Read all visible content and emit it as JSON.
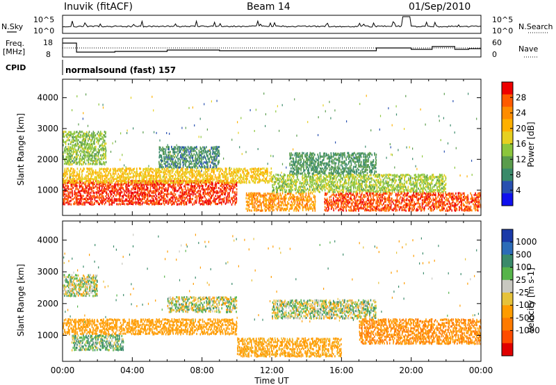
{
  "header": {
    "station": "Inuvik (fitACF)",
    "beam": "Beam 14",
    "date": "01/Sep/2010"
  },
  "summary": {
    "nsky_label": "N.Sky",
    "nsearch_label": "N.Search",
    "freq_label_line1": "Freq.",
    "freq_label_line2": "[MHz]",
    "nave_label": "Nave",
    "cpid_label": "CPID",
    "cpid_text": "normalsound (fast) 157",
    "left_ticks_noise": [
      "10^5",
      "10^0"
    ],
    "right_ticks_noise": [
      "10^5",
      "10^0"
    ],
    "left_ticks_freq": [
      "18",
      "8"
    ],
    "right_ticks_nave": [
      "60",
      "0"
    ]
  },
  "axes": {
    "ylabel": "Slant Range [km]",
    "xlabel": "Time UT",
    "yticks": [
      "1000",
      "2000",
      "3000",
      "4000"
    ],
    "xticks": [
      "00:00",
      "04:00",
      "08:00",
      "12:00",
      "16:00",
      "20:00",
      "00:00"
    ]
  },
  "colorbars": {
    "power": {
      "label": "Power [dB]",
      "ticks": [
        "4",
        "8",
        "12",
        "16",
        "20",
        "24",
        "28"
      ],
      "colors": [
        "#1010ee",
        "#2850b0",
        "#3a8a6a",
        "#5a9c4c",
        "#8cc63c",
        "#e6d020",
        "#ffb000",
        "#ff8c00",
        "#ff5a00",
        "#ee0000"
      ]
    },
    "velocity": {
      "label": "Velocity [m s-1]",
      "ticks": [
        "1000",
        "500",
        "100",
        "25",
        "-25",
        "-100",
        "-500",
        "-1000"
      ],
      "colors": [
        "#1a3aa8",
        "#2c6cb8",
        "#3a8a6a",
        "#56b44a",
        "#c8c8c0",
        "#e6c23a",
        "#ff9c00",
        "#ff7a00",
        "#ff4c00",
        "#e00000"
      ]
    }
  },
  "chart_data": [
    {
      "type": "heatmap",
      "title": "Power",
      "xlabel": "Time UT",
      "ylabel": "Slant Range [km]",
      "xlim": [
        "00:00",
        "24:00"
      ],
      "ylim": [
        180,
        4600
      ],
      "colorbar_range": [
        0,
        30
      ],
      "bands": [
        {
          "t_start": 0.0,
          "t_end": 10.0,
          "range_lo": 500,
          "range_hi": 1300,
          "value": 27
        },
        {
          "t_start": 0.0,
          "t_end": 12.0,
          "range_lo": 1200,
          "range_hi": 1700,
          "value": 18
        },
        {
          "t_start": 0.0,
          "t_end": 2.5,
          "range_lo": 1800,
          "range_hi": 2900,
          "value": 13
        },
        {
          "t_start": 5.5,
          "t_end": 9.0,
          "range_lo": 1700,
          "range_hi": 2400,
          "value": 8
        },
        {
          "t_start": 10.5,
          "t_end": 14.5,
          "range_lo": 300,
          "range_hi": 900,
          "value": 22
        },
        {
          "t_start": 12.0,
          "t_end": 22.0,
          "range_lo": 900,
          "range_hi": 1500,
          "value": 14
        },
        {
          "t_start": 15.0,
          "t_end": 24.0,
          "range_lo": 300,
          "range_hi": 900,
          "value": 26
        },
        {
          "t_start": 13.0,
          "t_end": 18.0,
          "range_lo": 1500,
          "range_hi": 2200,
          "value": 9
        }
      ]
    },
    {
      "type": "heatmap",
      "title": "Velocity",
      "xlabel": "Time UT",
      "ylabel": "Slant Range [km]",
      "xlim": [
        "00:00",
        "24:00"
      ],
      "ylim": [
        180,
        4600
      ],
      "colorbar_range": [
        -1000,
        1000
      ],
      "bands": [
        {
          "t_start": 0.0,
          "t_end": 2.0,
          "range_lo": 2200,
          "range_hi": 2900,
          "value": 0
        },
        {
          "t_start": 0.5,
          "t_end": 3.5,
          "range_lo": 500,
          "range_hi": 1000,
          "value": 80
        },
        {
          "t_start": 0.0,
          "t_end": 10.0,
          "range_lo": 1000,
          "range_hi": 1500,
          "value": -300
        },
        {
          "t_start": 6.0,
          "t_end": 10.0,
          "range_lo": 1700,
          "range_hi": 2200,
          "value": 0
        },
        {
          "t_start": 10.0,
          "t_end": 16.0,
          "range_lo": 300,
          "range_hi": 900,
          "value": -200
        },
        {
          "t_start": 12.0,
          "t_end": 18.0,
          "range_lo": 1500,
          "range_hi": 2100,
          "value": 0
        },
        {
          "t_start": 17.0,
          "t_end": 24.0,
          "range_lo": 700,
          "range_hi": 1500,
          "value": -500
        }
      ]
    }
  ]
}
